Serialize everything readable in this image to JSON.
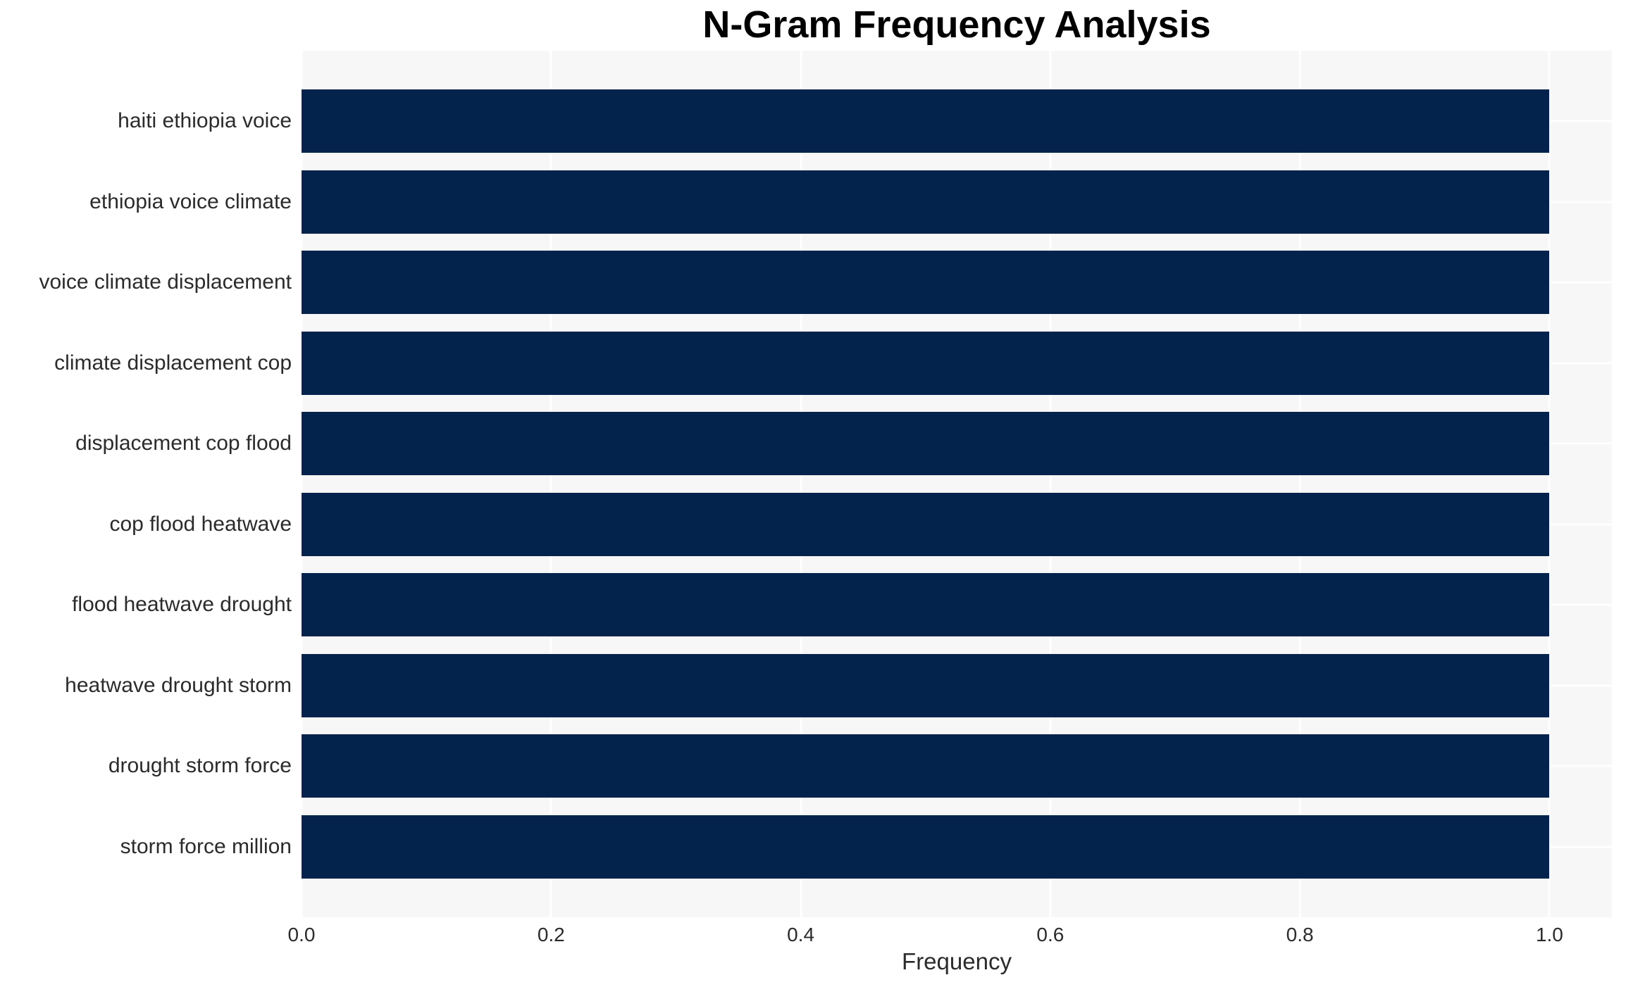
{
  "chart_data": {
    "type": "bar",
    "orientation": "horizontal",
    "title": "N-Gram Frequency Analysis",
    "xlabel": "Frequency",
    "ylabel": "",
    "categories": [
      "haiti ethiopia voice",
      "ethiopia voice climate",
      "voice climate displacement",
      "climate displacement cop",
      "displacement cop flood",
      "cop flood heatwave",
      "flood heatwave drought",
      "heatwave drought storm",
      "drought storm force",
      "storm force million"
    ],
    "values": [
      1.0,
      1.0,
      1.0,
      1.0,
      1.0,
      1.0,
      1.0,
      1.0,
      1.0,
      1.0
    ],
    "xlim": [
      0,
      1.05
    ],
    "xticks": [
      0.0,
      0.2,
      0.4,
      0.6,
      0.8,
      1.0
    ],
    "grid": true,
    "legend": false,
    "colors": {
      "bar": "#04234c",
      "plot_background": "#f7f7f7",
      "page_background": "#ffffff",
      "gridline": "#ffffff",
      "tick_text": "#2b2b2b",
      "title_text": "#000000"
    }
  }
}
